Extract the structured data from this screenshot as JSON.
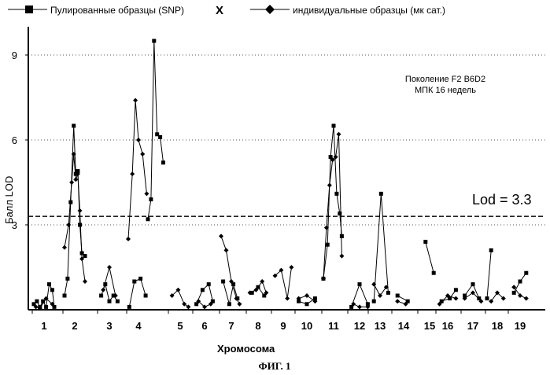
{
  "legend": {
    "series_pooled_label": "Пулированные образцы (SNP)",
    "separator": "X",
    "series_individual_label": "индивидуальные образцы (мк сат.)"
  },
  "annotation": {
    "line1": "Поколение F2 B6D2",
    "line2": "МПК 16 недель"
  },
  "threshold_label": "Lod = 3.3",
  "caption": "ФИГ. 1",
  "chart_data": {
    "type": "line",
    "title": "",
    "xlabel": "Хромосома",
    "ylabel": "Балл LOD",
    "ylim": [
      0,
      10
    ],
    "yticks": [
      3,
      6,
      9
    ],
    "grid": "dotted horizontal at 3, 6, 9",
    "legend_position": "top",
    "threshold": 3.3,
    "chromosomes": [
      "1",
      "2",
      "3",
      "4",
      "5",
      "6",
      "7",
      "8",
      "9",
      "10",
      "11",
      "12",
      "13",
      "14",
      "15",
      "16",
      "17",
      "18",
      "19"
    ],
    "series": [
      {
        "name": "Пулированные образцы (SNP)",
        "marker": "square",
        "segments": [
          {
            "chr": "1",
            "points": [
              [
                0.0,
                0.2
              ],
              [
                0.15,
                0.3
              ],
              [
                0.3,
                0.1
              ],
              [
                0.45,
                0.3
              ],
              [
                0.6,
                0.1
              ],
              [
                0.75,
                0.9
              ],
              [
                0.9,
                0.7
              ],
              [
                1.0,
                0.1
              ]
            ]
          },
          {
            "chr": "2",
            "points": [
              [
                0.0,
                0.5
              ],
              [
                0.15,
                1.1
              ],
              [
                0.3,
                3.8
              ],
              [
                0.45,
                6.5
              ],
              [
                0.55,
                4.8
              ],
              [
                0.65,
                4.9
              ],
              [
                0.75,
                3.0
              ],
              [
                0.85,
                2.0
              ],
              [
                1.0,
                1.9
              ]
            ]
          },
          {
            "chr": "3",
            "points": [
              [
                0.1,
                0.5
              ],
              [
                0.3,
                0.9
              ],
              [
                0.5,
                0.3
              ],
              [
                0.7,
                0.5
              ],
              [
                0.9,
                0.3
              ]
            ]
          },
          {
            "chr": "4",
            "points": [
              [
                0.05,
                0.1
              ],
              [
                0.3,
                1.0
              ],
              [
                0.6,
                1.1
              ],
              [
                0.85,
                0.5
              ]
            ]
          },
          {
            "chr": "4b",
            "points": [
              [
                0.0,
                3.2
              ],
              [
                0.15,
                3.9
              ],
              [
                0.3,
                9.5
              ],
              [
                0.45,
                6.2
              ],
              [
                0.6,
                6.1
              ],
              [
                0.75,
                5.2
              ]
            ]
          },
          {
            "chr": "6",
            "points": [
              [
                0.1,
                0.2
              ],
              [
                0.4,
                0.7
              ],
              [
                0.7,
                0.9
              ],
              [
                0.9,
                0.3
              ]
            ]
          },
          {
            "chr": "7",
            "points": [
              [
                0.1,
                1.0
              ],
              [
                0.4,
                0.2
              ],
              [
                0.6,
                0.9
              ],
              [
                0.8,
                0.4
              ]
            ]
          },
          {
            "chr": "8",
            "points": [
              [
                0.2,
                0.6
              ],
              [
                0.5,
                0.8
              ],
              [
                0.8,
                0.5
              ]
            ]
          },
          {
            "chr": "10",
            "points": [
              [
                0.1,
                0.3
              ],
              [
                0.5,
                0.2
              ],
              [
                0.9,
                0.4
              ]
            ]
          },
          {
            "chr": "11",
            "points": [
              [
                0.0,
                1.1
              ],
              [
                0.2,
                2.3
              ],
              [
                0.35,
                5.4
              ],
              [
                0.5,
                6.5
              ],
              [
                0.65,
                4.1
              ],
              [
                0.8,
                3.4
              ],
              [
                0.9,
                2.6
              ]
            ]
          },
          {
            "chr": "12",
            "points": [
              [
                0.1,
                0.1
              ],
              [
                0.5,
                0.9
              ],
              [
                0.9,
                0.2
              ]
            ]
          },
          {
            "chr": "13",
            "points": [
              [
                0.2,
                0.3
              ],
              [
                0.55,
                4.1
              ],
              [
                0.9,
                0.6
              ]
            ]
          },
          {
            "chr": "14",
            "points": [
              [
                0.2,
                0.5
              ],
              [
                0.7,
                0.3
              ]
            ]
          },
          {
            "chr": "15",
            "points": [
              [
                0.3,
                2.4
              ],
              [
                0.7,
                1.3
              ]
            ]
          },
          {
            "chr": "16",
            "points": [
              [
                0.2,
                0.3
              ],
              [
                0.6,
                0.4
              ],
              [
                0.9,
                0.7
              ]
            ]
          },
          {
            "chr": "17",
            "points": [
              [
                0.1,
                0.5
              ],
              [
                0.5,
                0.9
              ],
              [
                0.8,
                0.4
              ]
            ]
          },
          {
            "chr": "18",
            "points": [
              [
                0.0,
                0.4
              ],
              [
                0.2,
                2.1
              ]
            ]
          },
          {
            "chr": "19",
            "points": [
              [
                0.2,
                0.6
              ],
              [
                0.5,
                1.0
              ],
              [
                0.8,
                1.3
              ]
            ]
          }
        ]
      },
      {
        "name": "индивидуальные образцы (мк сат.)",
        "marker": "diamond",
        "segments": [
          {
            "chr": "1",
            "points": [
              [
                0.1,
                0.1
              ],
              [
                0.3,
                0.05
              ],
              [
                0.6,
                0.4
              ],
              [
                0.9,
                0.2
              ]
            ]
          },
          {
            "chr": "2",
            "points": [
              [
                0.0,
                2.2
              ],
              [
                0.2,
                3.0
              ],
              [
                0.35,
                4.5
              ],
              [
                0.45,
                5.5
              ],
              [
                0.55,
                4.6
              ],
              [
                0.65,
                4.8
              ],
              [
                0.75,
                3.5
              ],
              [
                0.85,
                1.8
              ],
              [
                1.0,
                1.0
              ]
            ]
          },
          {
            "chr": "3",
            "points": [
              [
                0.2,
                0.7
              ],
              [
                0.5,
                1.5
              ],
              [
                0.8,
                0.5
              ]
            ]
          },
          {
            "chr": "4",
            "points": [
              [
                0.0,
                2.5
              ],
              [
                0.2,
                4.8
              ],
              [
                0.35,
                7.4
              ],
              [
                0.5,
                6.0
              ],
              [
                0.7,
                5.5
              ],
              [
                0.9,
                4.1
              ]
            ]
          },
          {
            "chr": "5",
            "points": [
              [
                0.1,
                0.5
              ],
              [
                0.4,
                0.7
              ],
              [
                0.7,
                0.2
              ],
              [
                0.9,
                0.1
              ]
            ]
          },
          {
            "chr": "6",
            "points": [
              [
                0.2,
                0.3
              ],
              [
                0.5,
                0.1
              ],
              [
                0.8,
                0.2
              ]
            ]
          },
          {
            "chr": "7",
            "points": [
              [
                0.0,
                2.6
              ],
              [
                0.25,
                2.1
              ],
              [
                0.5,
                1.0
              ],
              [
                0.75,
                0.4
              ],
              [
                0.9,
                0.2
              ]
            ]
          },
          {
            "chr": "8",
            "points": [
              [
                0.1,
                0.6
              ],
              [
                0.4,
                0.7
              ],
              [
                0.7,
                1.0
              ],
              [
                0.9,
                0.6
              ]
            ]
          },
          {
            "chr": "9",
            "points": [
              [
                0.1,
                1.2
              ],
              [
                0.4,
                1.4
              ],
              [
                0.7,
                0.4
              ],
              [
                0.9,
                1.5
              ]
            ]
          },
          {
            "chr": "10",
            "points": [
              [
                0.1,
                0.4
              ],
              [
                0.5,
                0.5
              ],
              [
                0.9,
                0.3
              ]
            ]
          },
          {
            "chr": "11",
            "points": [
              [
                0.0,
                1.1
              ],
              [
                0.15,
                2.9
              ],
              [
                0.3,
                4.4
              ],
              [
                0.45,
                5.3
              ],
              [
                0.6,
                5.4
              ],
              [
                0.75,
                6.2
              ],
              [
                0.9,
                1.9
              ]
            ]
          },
          {
            "chr": "12",
            "points": [
              [
                0.2,
                0.2
              ],
              [
                0.5,
                0.1
              ],
              [
                0.9,
                0.1
              ]
            ]
          },
          {
            "chr": "13",
            "points": [
              [
                0.2,
                0.9
              ],
              [
                0.5,
                0.5
              ],
              [
                0.8,
                0.8
              ]
            ]
          },
          {
            "chr": "14",
            "points": [
              [
                0.2,
                0.3
              ],
              [
                0.6,
                0.2
              ]
            ]
          },
          {
            "chr": "16",
            "points": [
              [
                0.1,
                0.2
              ],
              [
                0.5,
                0.5
              ],
              [
                0.9,
                0.4
              ]
            ]
          },
          {
            "chr": "17",
            "points": [
              [
                0.1,
                0.4
              ],
              [
                0.5,
                0.6
              ],
              [
                0.9,
                0.3
              ]
            ]
          },
          {
            "chr": "18",
            "points": [
              [
                0.2,
                0.3
              ],
              [
                0.5,
                0.6
              ],
              [
                0.8,
                0.4
              ]
            ]
          },
          {
            "chr": "19",
            "points": [
              [
                0.2,
                0.8
              ],
              [
                0.5,
                0.5
              ],
              [
                0.8,
                0.4
              ]
            ]
          }
        ]
      }
    ]
  }
}
